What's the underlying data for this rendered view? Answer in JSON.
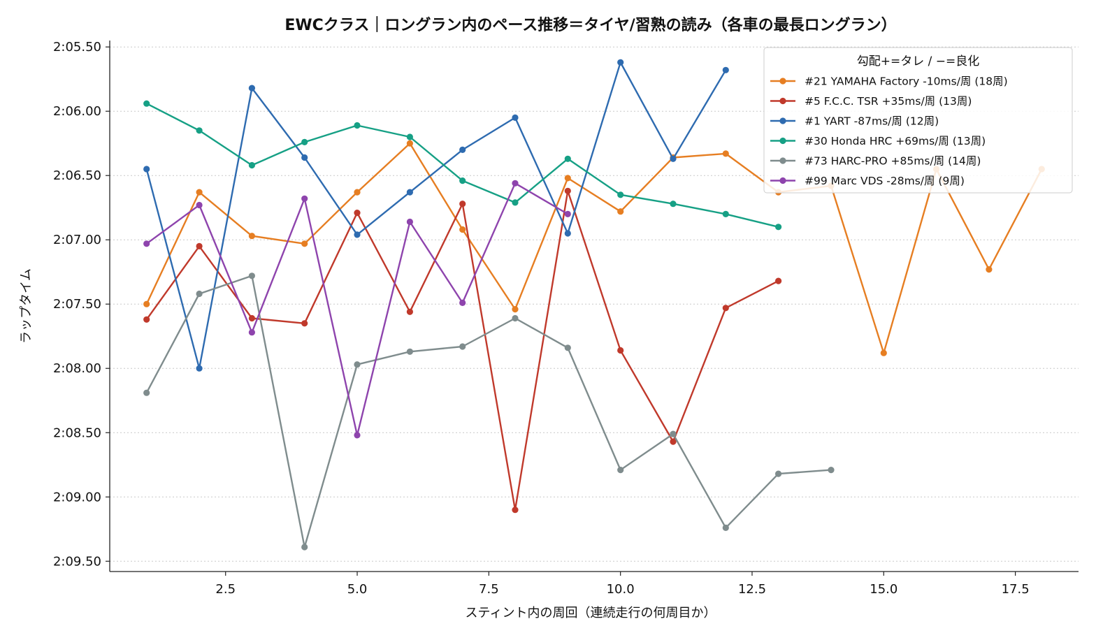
{
  "chart_data": {
    "type": "line",
    "title": "EWCクラス｜ロングラン内のペース推移＝タイヤ/習熟の読み（各車の最長ロングラン）",
    "xlabel": "スティント内の周回（連続走行の何周目か）",
    "ylabel": "ラップタイム",
    "xlim": [
      0.3,
      18.7
    ],
    "ylim": [
      129.58,
      125.45
    ],
    "y_inverted": true,
    "x_ticks": [
      2.5,
      5.0,
      7.5,
      10.0,
      12.5,
      15.0,
      17.5
    ],
    "x_tick_labels": [
      "2.5",
      "5.0",
      "7.5",
      "10.0",
      "12.5",
      "15.0",
      "17.5"
    ],
    "y_ticks": [
      125.5,
      126.0,
      126.5,
      127.0,
      127.5,
      128.0,
      128.5,
      129.0,
      129.5
    ],
    "y_tick_labels": [
      "2:05.50",
      "2:06.00",
      "2:06.50",
      "2:07.00",
      "2:07.50",
      "2:08.00",
      "2:08.50",
      "2:09.00",
      "2:09.50"
    ],
    "grid": "horizontal dotted",
    "legend_title": "勾配+=タレ / −=良化",
    "legend_position": "top-right",
    "series": [
      {
        "name": "#21 YAMAHA Factory  -10ms/周 (18周)",
        "color": "#e67e22",
        "x": [
          1,
          2,
          3,
          4,
          5,
          6,
          7,
          8,
          9,
          10,
          11,
          12,
          13,
          14,
          15,
          16,
          17,
          18
        ],
        "y": [
          127.5,
          126.63,
          126.97,
          127.03,
          126.63,
          126.25,
          126.92,
          127.54,
          126.52,
          126.78,
          126.36,
          126.33,
          126.63,
          126.58,
          127.88,
          126.45,
          127.23,
          126.45
        ]
      },
      {
        "name": "#5 F.C.C. TSR  +35ms/周 (13周)",
        "color": "#c0392b",
        "x": [
          1,
          2,
          3,
          4,
          5,
          6,
          7,
          8,
          9,
          10,
          11,
          12,
          13
        ],
        "y": [
          127.62,
          127.05,
          127.61,
          127.65,
          126.79,
          127.56,
          126.72,
          129.1,
          126.62,
          127.86,
          128.57,
          127.53,
          127.32
        ]
      },
      {
        "name": "#1 YART  -87ms/周 (12周)",
        "color": "#2e6bb0",
        "x": [
          1,
          2,
          3,
          4,
          5,
          6,
          7,
          8,
          9,
          10,
          11,
          12
        ],
        "y": [
          126.45,
          128.0,
          125.82,
          126.36,
          126.96,
          126.63,
          126.3,
          126.05,
          126.95,
          125.62,
          126.37,
          125.68
        ]
      },
      {
        "name": "#30 Honda HRC  +69ms/周 (13周)",
        "color": "#16a085",
        "x": [
          1,
          2,
          3,
          4,
          5,
          6,
          7,
          8,
          9,
          10,
          11,
          12,
          13
        ],
        "y": [
          125.94,
          126.15,
          126.42,
          126.24,
          126.11,
          126.2,
          126.54,
          126.71,
          126.37,
          126.65,
          126.72,
          126.8,
          126.9
        ]
      },
      {
        "name": "#73 HARC-PRO  +85ms/周 (14周)",
        "color": "#7f8c8d",
        "x": [
          1,
          2,
          3,
          4,
          5,
          6,
          7,
          8,
          9,
          10,
          11,
          12,
          13,
          14
        ],
        "y": [
          128.19,
          127.42,
          127.28,
          129.39,
          127.97,
          127.87,
          127.83,
          127.61,
          127.84,
          128.79,
          128.51,
          129.24,
          128.82,
          128.79
        ]
      },
      {
        "name": "#99 Marc VDS  -28ms/周 (9周)",
        "color": "#8e44ad",
        "x": [
          1,
          2,
          3,
          4,
          5,
          6,
          7,
          8,
          9
        ],
        "y": [
          127.03,
          126.73,
          127.72,
          126.68,
          128.52,
          126.86,
          127.49,
          126.56,
          126.8
        ]
      }
    ]
  }
}
